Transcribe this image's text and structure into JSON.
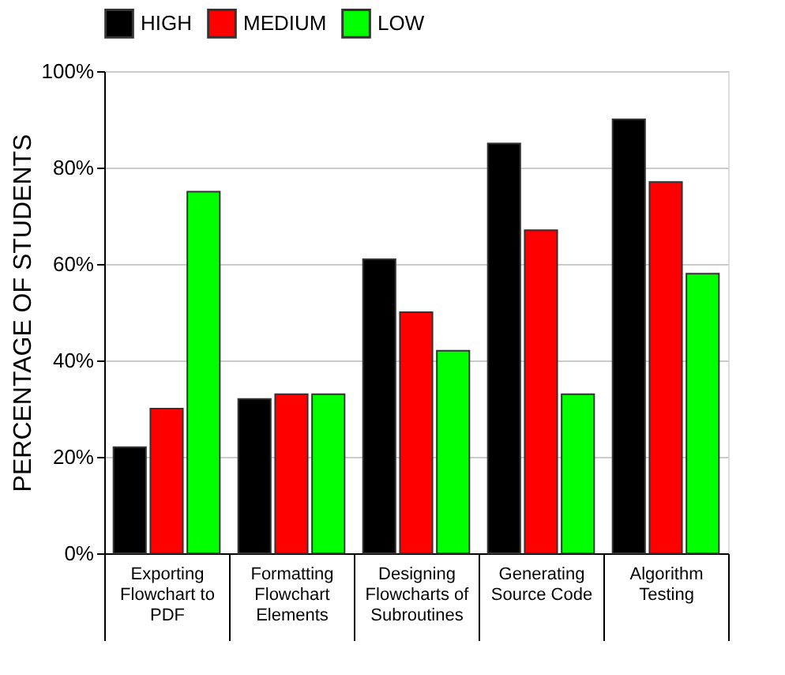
{
  "chart_data": {
    "type": "bar",
    "ylabel": "PERCENTAGE OF STUDENTS",
    "categories": [
      "Exporting Flowchart to PDF",
      "Formatting Flowchart Elements",
      "Designing Flowcharts of Subroutines",
      "Generating Source Code",
      "Algorithm Testing"
    ],
    "series": [
      {
        "name": "HIGH",
        "color": "#000000",
        "values": [
          22,
          32,
          61,
          85,
          90
        ]
      },
      {
        "name": "MEDIUM",
        "color": "#ff0000",
        "values": [
          30,
          33,
          50,
          67,
          77
        ]
      },
      {
        "name": "LOW",
        "color": "#00ff00",
        "values": [
          75,
          33,
          42,
          33,
          58
        ]
      }
    ],
    "ylim": [
      0,
      100
    ],
    "yticks": [
      {
        "value": 0,
        "label": "0%"
      },
      {
        "value": 20,
        "label": "20%"
      },
      {
        "value": 40,
        "label": "40%"
      },
      {
        "value": 60,
        "label": "60%"
      },
      {
        "value": 80,
        "label": "80%"
      },
      {
        "value": 100,
        "label": "100%"
      }
    ],
    "grid": "y",
    "legend": "top"
  }
}
